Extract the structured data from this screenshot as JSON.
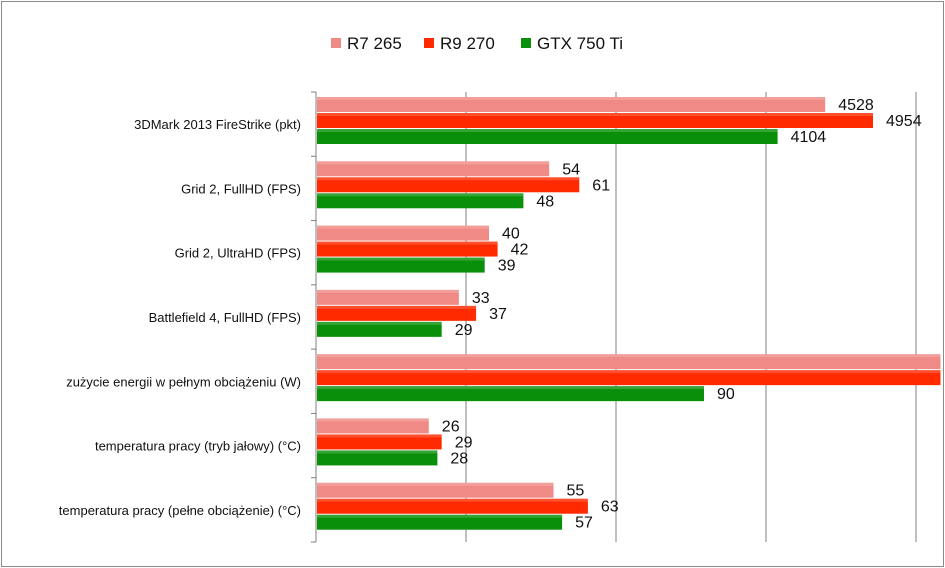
{
  "chart_data": {
    "type": "bar",
    "orientation": "horizontal",
    "categories": [
      "3DMark 2013 FireStrike (pkt)",
      "Grid 2, FullHD (FPS)",
      "Grid 2, UltraHD (FPS)",
      "Battlefield 4, FullHD (FPS)",
      "zużycie energii w pełnym obciążeniu (W)",
      "temperatura pracy (tryb jałowy) (°C)",
      "temperatura pracy (pełne obciążenie) (°C)"
    ],
    "series": [
      {
        "name": "R7 265",
        "color": "#f08a87",
        "values": [
          4528,
          54,
          40,
          33,
          145,
          26,
          55
        ]
      },
      {
        "name": "R9 270",
        "color": "#ff2a00",
        "values": [
          4954,
          61,
          42,
          37,
          145,
          29,
          63
        ]
      },
      {
        "name": "GTX 750 Ti",
        "color": "#0a8f0a",
        "values": [
          4104,
          48,
          39,
          29,
          90,
          28,
          57
        ]
      }
    ],
    "legend_position": "top",
    "grid": true,
    "axis_labels_shown": false
  }
}
